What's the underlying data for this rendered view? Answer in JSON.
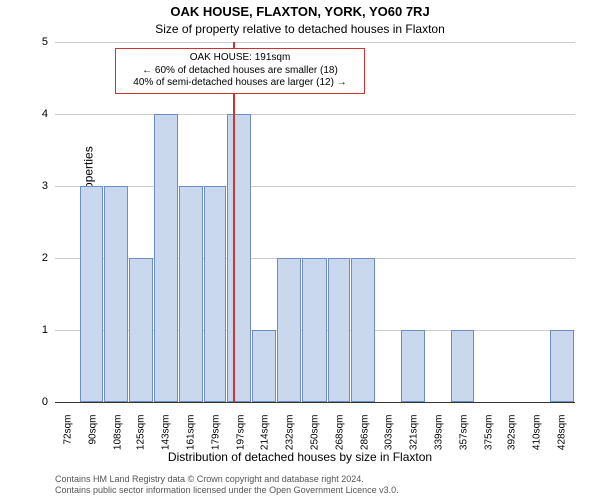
{
  "title_main": "OAK HOUSE, FLAXTON, YORK, YO60 7RJ",
  "title_sub": "Size of property relative to detached houses in Flaxton",
  "y_axis_label": "Number of detached properties",
  "x_axis_label": "Distribution of detached houses by size in Flaxton",
  "chart": {
    "type": "histogram",
    "x_tick_labels": [
      "72sqm",
      "90sqm",
      "108sqm",
      "125sqm",
      "143sqm",
      "161sqm",
      "179sqm",
      "197sqm",
      "214sqm",
      "232sqm",
      "250sqm",
      "268sqm",
      "286sqm",
      "303sqm",
      "321sqm",
      "339sqm",
      "357sqm",
      "375sqm",
      "392sqm",
      "410sqm",
      "428sqm"
    ],
    "x_tick_positions": [
      72,
      90,
      108,
      125,
      143,
      161,
      179,
      197,
      214,
      232,
      250,
      268,
      286,
      303,
      321,
      339,
      357,
      375,
      392,
      410,
      428
    ],
    "y_ticks": [
      0,
      1,
      2,
      3,
      4,
      5
    ],
    "ylim": [
      0,
      5
    ],
    "xlim": [
      63,
      437
    ],
    "bars": [
      {
        "x0": 63,
        "x1": 81,
        "value": 0
      },
      {
        "x0": 81,
        "x1": 98,
        "value": 3
      },
      {
        "x0": 98,
        "x1": 116,
        "value": 3
      },
      {
        "x0": 116,
        "x1": 134,
        "value": 2
      },
      {
        "x0": 134,
        "x1": 152,
        "value": 4
      },
      {
        "x0": 152,
        "x1": 170,
        "value": 3
      },
      {
        "x0": 170,
        "x1": 187,
        "value": 3
      },
      {
        "x0": 187,
        "x1": 205,
        "value": 4
      },
      {
        "x0": 205,
        "x1": 223,
        "value": 1
      },
      {
        "x0": 223,
        "x1": 241,
        "value": 2
      },
      {
        "x0": 241,
        "x1": 259,
        "value": 2
      },
      {
        "x0": 259,
        "x1": 276,
        "value": 2
      },
      {
        "x0": 276,
        "x1": 294,
        "value": 2
      },
      {
        "x0": 294,
        "x1": 312,
        "value": 0
      },
      {
        "x0": 312,
        "x1": 330,
        "value": 1
      },
      {
        "x0": 330,
        "x1": 348,
        "value": 0
      },
      {
        "x0": 348,
        "x1": 365,
        "value": 1
      },
      {
        "x0": 365,
        "x1": 383,
        "value": 0
      },
      {
        "x0": 383,
        "x1": 401,
        "value": 0
      },
      {
        "x0": 401,
        "x1": 419,
        "value": 0
      },
      {
        "x0": 419,
        "x1": 437,
        "value": 1
      }
    ],
    "bar_fill": "#c9d8ed",
    "bar_border": "#6b8fc4",
    "background": "#ffffff",
    "grid_color": "#cccccc",
    "axis_color": "#333333",
    "marker_x": 191,
    "marker_color": "#cc3333",
    "annotation": {
      "line1": "OAK HOUSE: 191sqm",
      "line2": "← 60% of detached houses are smaller (18)",
      "line3": "40% of semi-detached houses are larger (12) →",
      "border_color": "#cc3333"
    }
  },
  "footer_line1": "Contains HM Land Registry data © Crown copyright and database right 2024.",
  "footer_line2": "Contains public sector information licensed under the Open Government Licence v3.0."
}
